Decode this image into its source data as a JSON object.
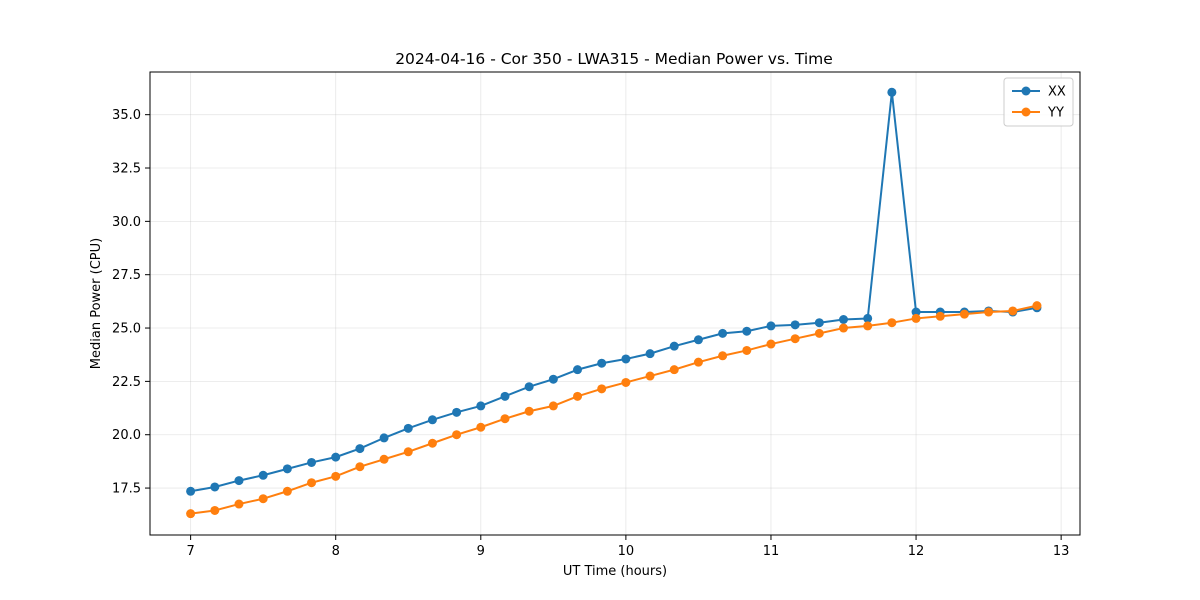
{
  "chart_data": {
    "type": "line",
    "title": "2024-04-16 - Cor 350 - LWA315 - Median Power vs. Time",
    "xlabel": "UT Time (hours)",
    "ylabel": "Median Power (CPU)",
    "xlim": [
      6.72,
      13.13
    ],
    "ylim": [
      15.3,
      37.0
    ],
    "x_ticks": [
      7,
      8,
      9,
      10,
      11,
      12,
      13
    ],
    "x_tick_labels": [
      "7",
      "8",
      "9",
      "10",
      "11",
      "12",
      "13"
    ],
    "y_ticks": [
      17.5,
      20.0,
      22.5,
      25.0,
      27.5,
      30.0,
      32.5,
      35.0
    ],
    "y_tick_labels": [
      "17.5",
      "20.0",
      "22.5",
      "25.0",
      "27.5",
      "30.0",
      "32.5",
      "35.0"
    ],
    "grid": true,
    "legend_position": "top-right",
    "x": [
      7.0,
      7.1667,
      7.3333,
      7.5,
      7.6667,
      7.8333,
      8.0,
      8.1667,
      8.3333,
      8.5,
      8.6667,
      8.8333,
      9.0,
      9.1667,
      9.3333,
      9.5,
      9.6667,
      9.8333,
      10.0,
      10.1667,
      10.3333,
      10.5,
      10.6667,
      10.8333,
      11.0,
      11.1667,
      11.3333,
      11.5,
      11.6667,
      11.8333,
      12.0,
      12.1667,
      12.3333,
      12.5,
      12.6667,
      12.8333
    ],
    "series": [
      {
        "name": "XX",
        "color": "#1f77b4",
        "values": [
          17.35,
          17.55,
          17.85,
          18.1,
          18.4,
          18.7,
          18.95,
          19.35,
          19.85,
          20.3,
          20.7,
          21.05,
          21.35,
          21.8,
          22.25,
          22.6,
          23.05,
          23.35,
          23.55,
          23.8,
          24.15,
          24.45,
          24.75,
          24.85,
          25.1,
          25.15,
          25.25,
          25.4,
          25.45,
          36.05,
          25.75,
          25.75,
          25.75,
          25.8,
          25.75,
          25.95
        ]
      },
      {
        "name": "YY",
        "color": "#ff7f0e",
        "values": [
          16.3,
          16.45,
          16.75,
          17.0,
          17.35,
          17.75,
          18.05,
          18.5,
          18.85,
          19.2,
          19.6,
          20.0,
          20.35,
          20.75,
          21.1,
          21.35,
          21.8,
          22.15,
          22.45,
          22.75,
          23.05,
          23.4,
          23.7,
          23.95,
          24.25,
          24.5,
          24.75,
          25.0,
          25.1,
          25.25,
          25.45,
          25.55,
          25.65,
          25.75,
          25.8,
          26.05
        ]
      }
    ]
  }
}
